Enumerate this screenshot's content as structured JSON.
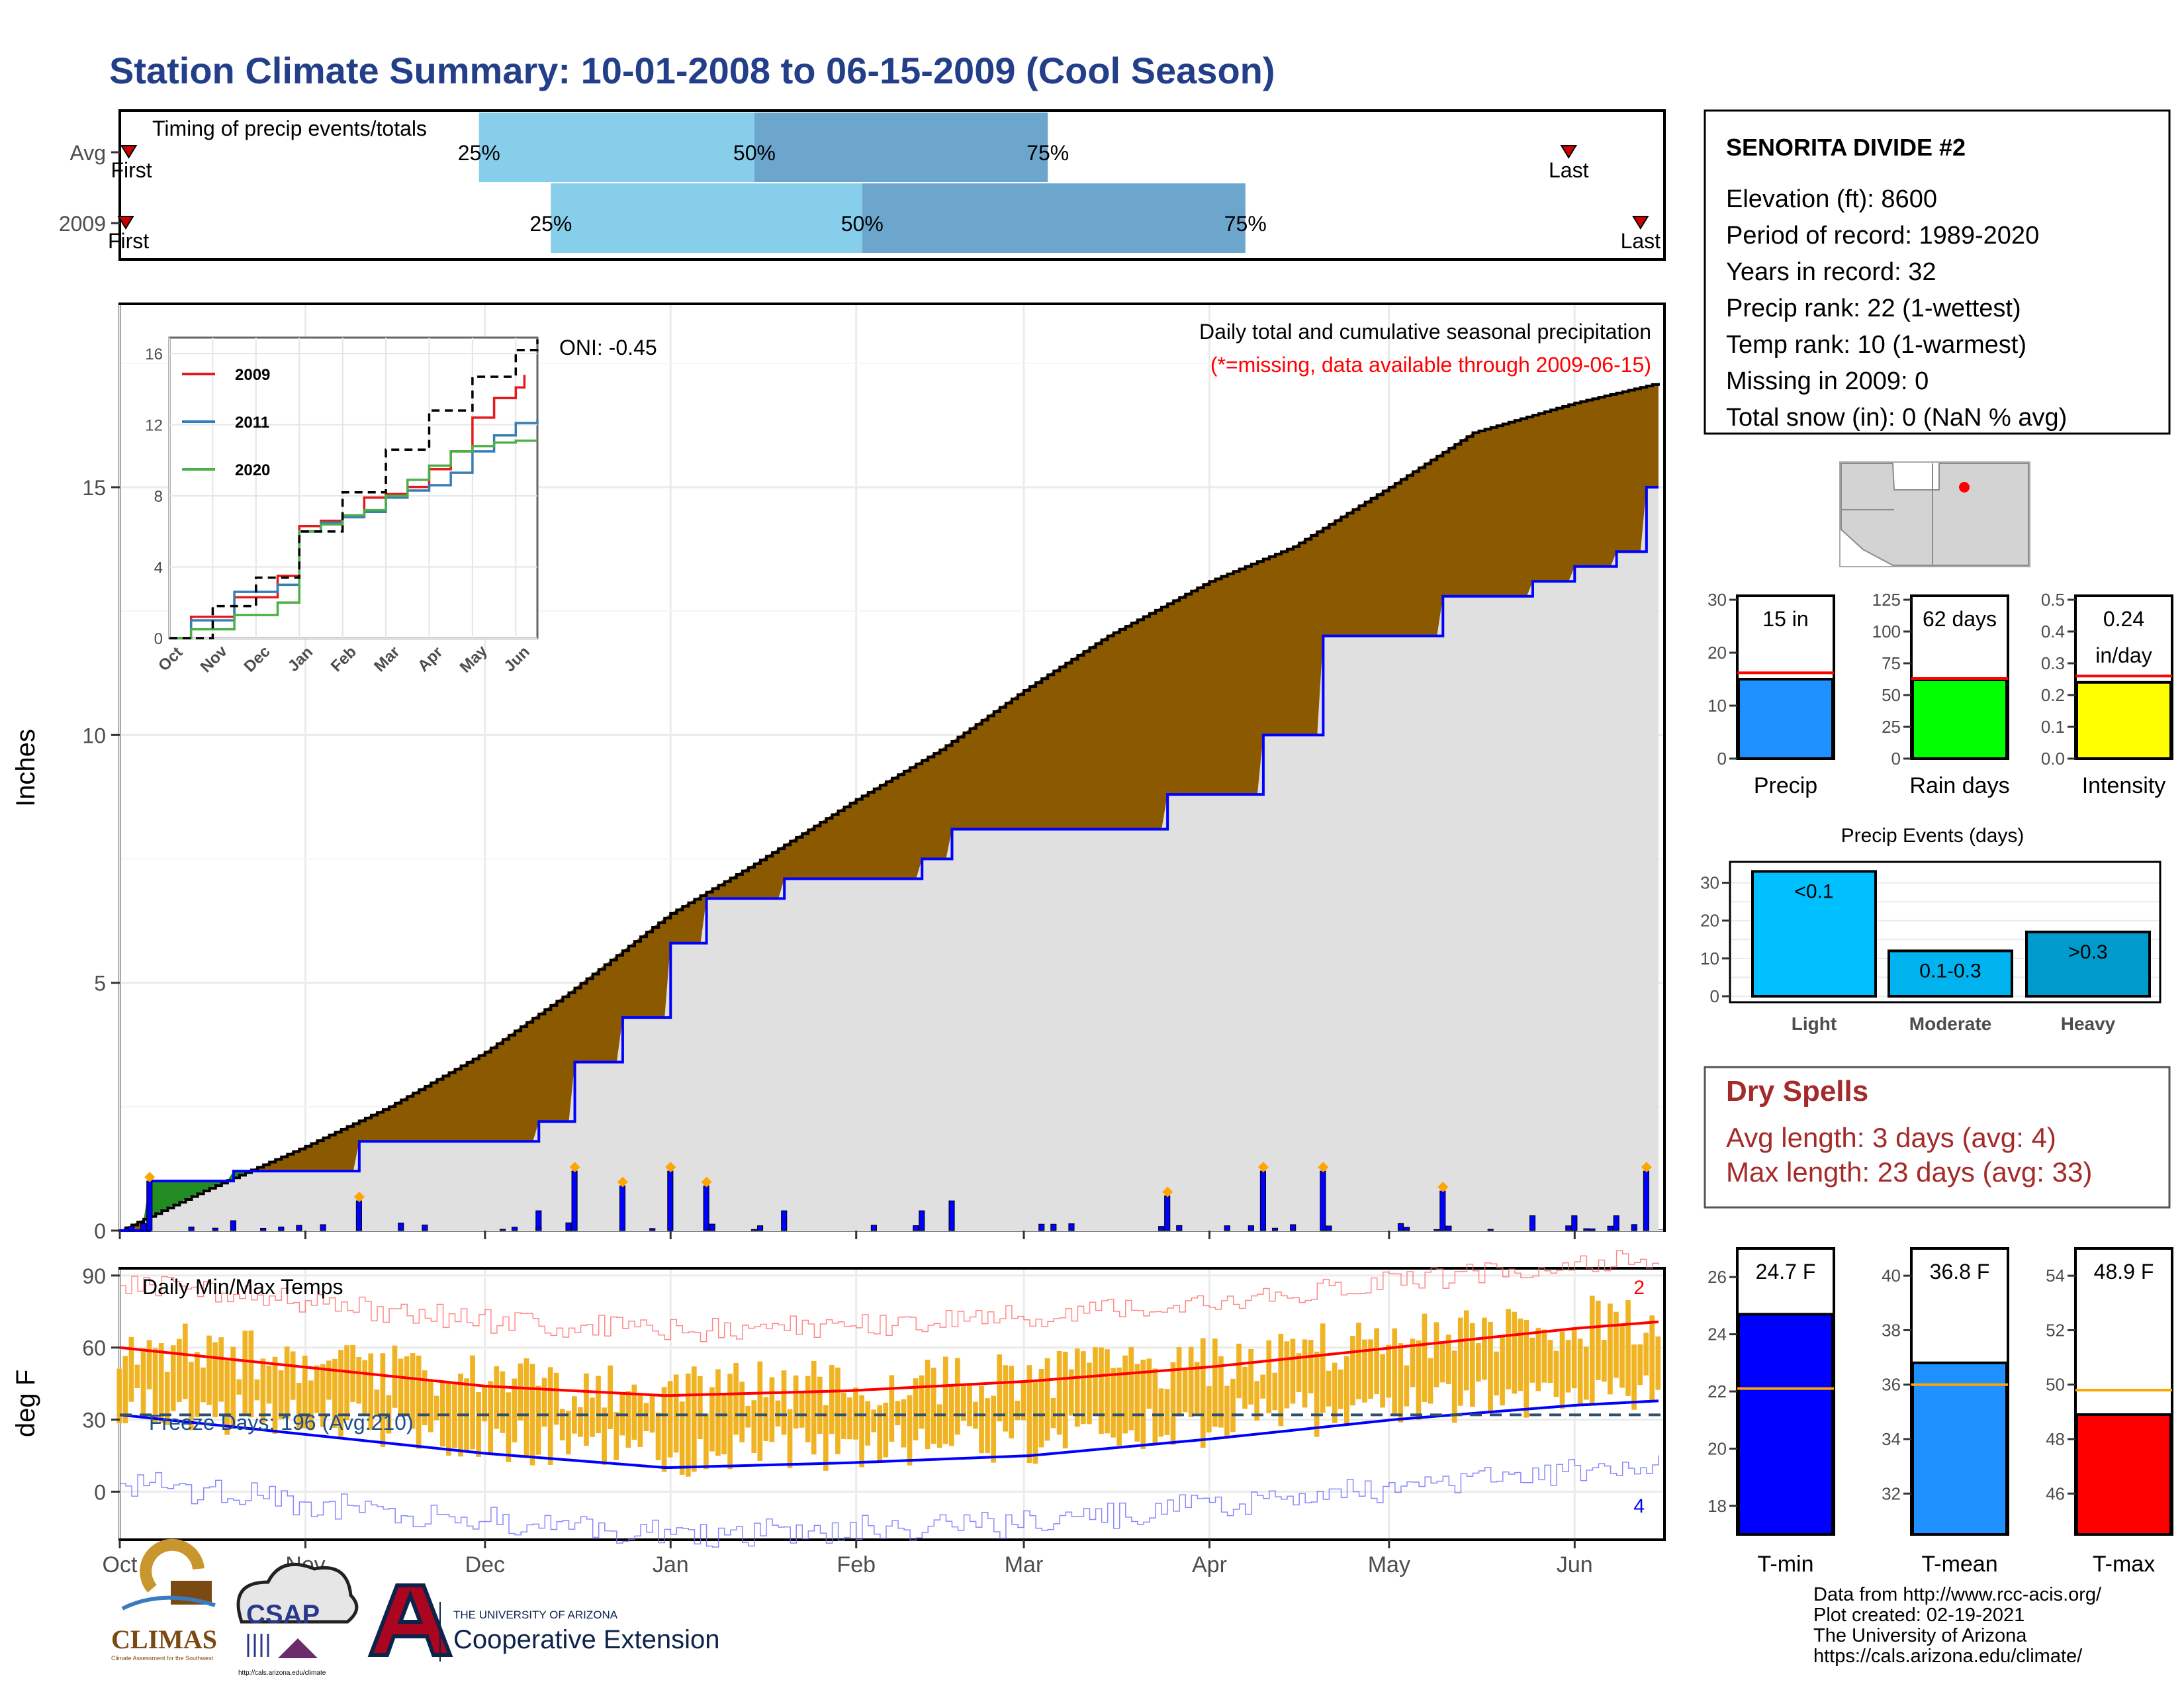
{
  "header": {
    "title": "Station Climate Summary: 10-01-2008 to 06-15-2009 (Cool Season)"
  },
  "timing": {
    "title": "Timing of precip events/totals",
    "rows": [
      {
        "label": "Avg",
        "first_label": "First",
        "last_label": "Last",
        "first": 1.5,
        "last": 242,
        "q25": 60,
        "q50": 106,
        "q75": 155
      },
      {
        "label": "2009",
        "first_label": "First",
        "last_label": "Last",
        "first": 1,
        "last": 254,
        "q25": 72,
        "q50": 124,
        "q75": 188
      }
    ],
    "q_labels": [
      "25%",
      "50%",
      "75%"
    ],
    "colors": {
      "light": "#87ceeb",
      "dark": "#6ca6cd",
      "marker": "#cc0000"
    }
  },
  "main_panel": {
    "ylabel": "Inches",
    "note1": "Daily total and cumulative seasonal precipitation",
    "note2": "(*=missing, data available through 2009-06-15)",
    "oni": "ONI: -0.45",
    "colors": {
      "deficit": "#8b5a00",
      "surplus": "#228b22",
      "area": "#e0e0e0",
      "line": "#0000ff",
      "bars": "#0000ff",
      "marker": "#ffa500"
    }
  },
  "inset": {
    "legend": [
      "2009",
      "2011",
      "2020"
    ],
    "colors": [
      "#e41a1c",
      "#377eb8",
      "#4daf4a"
    ]
  },
  "temp_panel": {
    "ylabel": "deg F",
    "title": "Daily Min/Max Temps",
    "freeze": "Freeze Days: 196 (Avg:210)",
    "count_top": "2",
    "count_bottom": "4",
    "colors": {
      "bars": "#f0b323",
      "max": "#ff0000",
      "min": "#0000ff"
    }
  },
  "station": {
    "name": "SENORITA DIVIDE #2",
    "lines": [
      "Elevation (ft): 8600",
      "Period of record: 1989-2020",
      "Years in record: 32",
      "Precip rank: 22 (1-wettest)",
      "Temp rank: 10 (1-warmest)",
      "Missing in 2009: 0",
      "Total snow (in): 0 (NaN % avg)"
    ]
  },
  "mini_bars": [
    {
      "label": "Precip",
      "value_text": "15 in",
      "value2": "",
      "ticks": [
        "0",
        "10",
        "20",
        "30"
      ],
      "max": 30,
      "value": 15,
      "avg": 16.2,
      "color": "#1e90ff"
    },
    {
      "label": "Rain days",
      "value_text": "62 days",
      "value2": "",
      "ticks": [
        "0",
        "25",
        "50",
        "75",
        "100",
        "125"
      ],
      "max": 125,
      "value": 62,
      "avg": 63,
      "color": "#00ff00"
    },
    {
      "label": "Intensity",
      "value_text": "0.24",
      "value2": "in/day",
      "ticks": [
        "0.0",
        "0.1",
        "0.2",
        "0.3",
        "0.4",
        "0.5"
      ],
      "max": 0.5,
      "value": 0.24,
      "avg": 0.26,
      "color": "#ffff00"
    }
  ],
  "events": {
    "title": "Precip Events (days)",
    "ticks": [
      "0",
      "10",
      "20",
      "30"
    ],
    "bars": [
      {
        "cat": "Light",
        "text": "<0.1",
        "value": 33,
        "color": "#00bfff"
      },
      {
        "cat": "Moderate",
        "text": "0.1-0.3",
        "value": 12,
        "color": "#00b2ee"
      },
      {
        "cat": "Heavy",
        "text": ">0.3",
        "value": 17,
        "color": "#009acd"
      }
    ]
  },
  "dry_spells": {
    "title": "Dry Spells",
    "avg": "Avg length: 3 days (avg: 4)",
    "max": "Max length: 23 days (avg: 33)"
  },
  "temp_bars": [
    {
      "label": "T-min",
      "value_text": "24.7 F",
      "ticks": [
        "18",
        "20",
        "22",
        "24",
        "26"
      ],
      "tmin": 17,
      "tmax": 27,
      "value": 24.7,
      "avg": 22.1,
      "color": "#0000ff"
    },
    {
      "label": "T-mean",
      "value_text": "36.8 F",
      "ticks": [
        "32",
        "34",
        "36",
        "38",
        "40"
      ],
      "tmin": 30.5,
      "tmax": 41,
      "value": 36.8,
      "avg": 36.0,
      "color": "#1e90ff"
    },
    {
      "label": "T-max",
      "value_text": "48.9 F",
      "ticks": [
        "46",
        "48",
        "50",
        "52",
        "54"
      ],
      "tmin": 44.5,
      "tmax": 55,
      "value": 48.9,
      "avg": 49.8,
      "color": "#ff0000"
    }
  ],
  "footer": {
    "lines": [
      "Data from http://www.rcc-acis.org/",
      "Plot created: 02-19-2021",
      "The University of Arizona",
      "https://cals.arizona.edu/climate/"
    ],
    "climas": "CLIMAS",
    "climas_sub": "Climate Assessment for the Southwest",
    "csap": "CSAP",
    "csap_url": "http://cals.arizona.edu/climate",
    "ua_small": "THE UNIVERSITY OF ARIZONA",
    "ua_big": "Cooperative Extension"
  },
  "chart_data": [
    {
      "type": "area",
      "title": "Daily total and cumulative seasonal precipitation",
      "ylabel": "Inches",
      "x_unit": "date",
      "xlim": [
        "2008-10-01",
        "2009-06-15"
      ],
      "ylim": [
        0,
        18.7
      ],
      "x_ticks": [
        "Oct",
        "Nov",
        "Dec",
        "Jan",
        "Feb",
        "Mar",
        "Apr",
        "May",
        "Jun"
      ],
      "y_ticks": [
        0,
        5,
        10,
        15
      ],
      "series": [
        {
          "name": "Avg cumulative",
          "x": [
            "2008-10-01",
            "2008-10-15",
            "2008-11-01",
            "2008-11-15",
            "2008-12-01",
            "2008-12-15",
            "2009-01-01",
            "2009-01-15",
            "2009-02-01",
            "2009-02-15",
            "2009-03-01",
            "2009-03-15",
            "2009-04-01",
            "2009-04-15",
            "2009-05-01",
            "2009-05-15",
            "2009-06-01",
            "2009-06-15"
          ],
          "values": [
            0,
            0.8,
            1.7,
            2.5,
            3.6,
            4.8,
            6.4,
            7.4,
            8.7,
            9.7,
            10.9,
            12.0,
            13.1,
            13.8,
            15.0,
            16.1,
            16.7,
            17.1
          ]
        },
        {
          "name": "2009 cumulative",
          "x": [
            "2008-10-01",
            "2008-10-06",
            "2008-10-20",
            "2008-11-10",
            "2008-12-10",
            "2008-12-16",
            "2008-12-24",
            "2009-01-01",
            "2009-01-07",
            "2009-01-20",
            "2009-02-12",
            "2009-02-17",
            "2009-03-10",
            "2009-03-25",
            "2009-04-10",
            "2009-04-20",
            "2009-05-10",
            "2009-05-25",
            "2009-06-01",
            "2009-06-08",
            "2009-06-13",
            "2009-06-15"
          ],
          "values": [
            0,
            1.0,
            1.2,
            1.8,
            2.2,
            3.4,
            4.3,
            5.8,
            6.7,
            7.1,
            7.5,
            8.1,
            8.1,
            8.8,
            10.0,
            12.0,
            12.8,
            13.1,
            13.4,
            13.7,
            15.0,
            15.0
          ]
        }
      ]
    },
    {
      "type": "line",
      "title": "",
      "x_ticks": [
        "Oct",
        "Nov",
        "Dec",
        "Jan",
        "Feb",
        "Mar",
        "Apr",
        "May",
        "Jun"
      ],
      "y_ticks": [
        0,
        4,
        8,
        12,
        16
      ],
      "ylim": [
        0,
        16.9
      ],
      "series": [
        {
          "name": "2009",
          "x_month": [
            0,
            0.5,
            1.5,
            2.5,
            3,
            3.5,
            4,
            4.5,
            5,
            5.5,
            6,
            6.5,
            7,
            7.5,
            8,
            8.2
          ],
          "values": [
            0,
            1.2,
            2.3,
            3.5,
            6.3,
            6.6,
            6.9,
            7.9,
            8.1,
            8.5,
            9.5,
            10.5,
            12.4,
            13.5,
            14.1,
            14.8
          ]
        },
        {
          "name": "2011",
          "x_month": [
            0,
            0.5,
            1.5,
            2.5,
            3,
            3.5,
            4,
            4.5,
            5,
            5.5,
            6,
            6.5,
            7,
            7.5,
            8,
            8.5
          ],
          "values": [
            0,
            1.0,
            2.6,
            3.0,
            6.0,
            6.5,
            6.8,
            7.1,
            7.9,
            8.3,
            8.6,
            9.3,
            10.5,
            11.4,
            12.1,
            12.3
          ]
        },
        {
          "name": "2020",
          "x_month": [
            0,
            0.5,
            1.5,
            2.5,
            3,
            3.5,
            4,
            4.5,
            5,
            5.5,
            6,
            6.5,
            7,
            7.5,
            8,
            8.5
          ],
          "values": [
            0,
            0.5,
            1.3,
            2.0,
            6.0,
            6.4,
            6.9,
            7.2,
            8.0,
            8.9,
            9.7,
            10.5,
            10.8,
            11.0,
            11.1,
            11.1
          ]
        },
        {
          "name": "Avg",
          "x_month": [
            0,
            1,
            2,
            3,
            4,
            5,
            6,
            7,
            8,
            8.5
          ],
          "values": [
            0,
            1.8,
            3.4,
            6.0,
            8.2,
            10.6,
            12.8,
            14.7,
            16.2,
            16.8
          ]
        }
      ]
    },
    {
      "type": "bar",
      "title": "Daily Min/Max Temps",
      "ylabel": "deg F",
      "ylim": [
        -20,
        93
      ],
      "y_ticks": [
        0,
        30,
        60,
        90
      ],
      "x_ticks": [
        "Oct",
        "Nov",
        "Dec",
        "Jan",
        "Feb",
        "Mar",
        "Apr",
        "May",
        "Jun"
      ],
      "series": [
        {
          "name": "Avg max",
          "x_month": [
            0,
            1,
            2,
            3,
            4,
            5,
            6,
            7,
            8,
            8.5
          ],
          "values": [
            60,
            52,
            44,
            40,
            42,
            46,
            52,
            60,
            68,
            71
          ]
        },
        {
          "name": "Avg min",
          "x_month": [
            0,
            1,
            2,
            3,
            4,
            5,
            6,
            7,
            8,
            8.5
          ],
          "values": [
            32,
            24,
            16,
            10,
            12,
            15,
            22,
            30,
            36,
            38
          ]
        }
      ]
    },
    {
      "type": "bar",
      "title": "Precip Events (days)",
      "categories": [
        "Light",
        "Moderate",
        "Heavy"
      ],
      "values": [
        33,
        12,
        17
      ],
      "ylim": [
        0,
        35
      ]
    }
  ]
}
